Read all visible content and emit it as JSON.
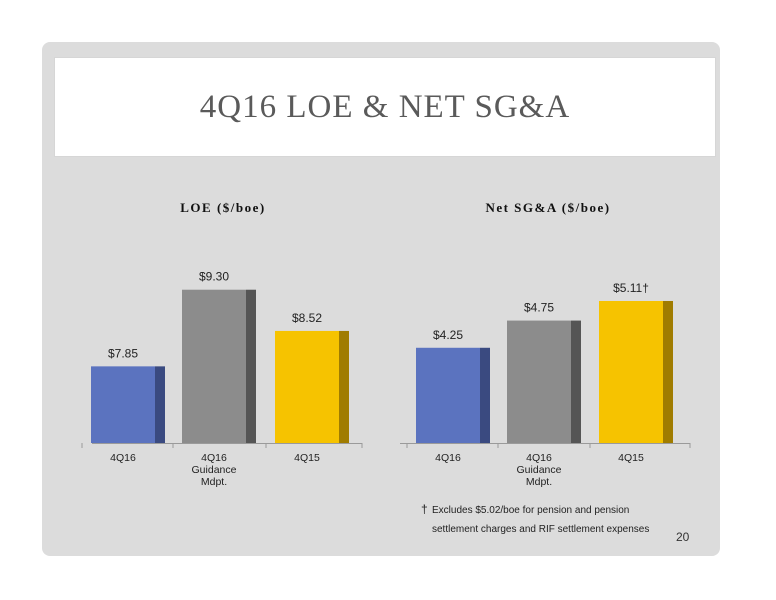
{
  "slide": {
    "title": "4Q16 LOE & NET SG&A",
    "page_number": "20",
    "footnote_marker": "†",
    "footnote_lines": [
      "Excludes $5.02/boe for pension and pension",
      "settlement charges and RIF settlement expenses"
    ]
  },
  "colors": {
    "blue": "#5b73bf",
    "gray": "#8c8c8c",
    "gold": "#f6c300",
    "blue_side": "#3a4a80",
    "gray_side": "#555555",
    "gold_side": "#a07c00"
  },
  "chart_data": [
    {
      "type": "bar",
      "title": "LOE ($/boe)",
      "categories": [
        [
          "4Q16"
        ],
        [
          "4Q16",
          "Guidance",
          "Mdpt."
        ],
        [
          "4Q15"
        ]
      ],
      "values": [
        7.85,
        9.3,
        8.52
      ],
      "value_labels": [
        "$7.85",
        "$9.30",
        "$8.52"
      ],
      "bar_colors": [
        "blue",
        "gray",
        "gold"
      ],
      "ylim": [
        6.4,
        9.9
      ]
    },
    {
      "type": "bar",
      "title": "Net SG&A ($/boe)",
      "categories": [
        [
          "4Q16"
        ],
        [
          "4Q16",
          "Guidance",
          "Mdpt."
        ],
        [
          "4Q15"
        ]
      ],
      "values": [
        4.25,
        4.75,
        5.11
      ],
      "value_labels": [
        "$4.25",
        "$4.75",
        "$5.11†"
      ],
      "bar_colors": [
        "blue",
        "gray",
        "gold"
      ],
      "ylim": [
        2.5,
        5.9
      ]
    }
  ]
}
